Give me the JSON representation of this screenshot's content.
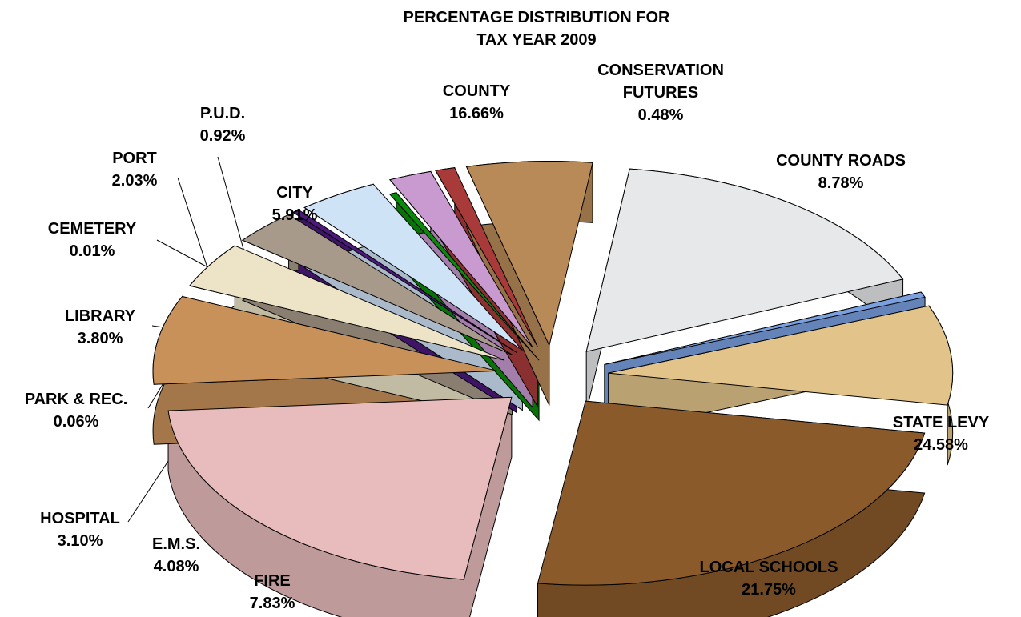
{
  "chart_data": {
    "type": "pie",
    "title_line1": "PERCENTAGE DISTRIBUTION FOR",
    "title_line2": "TAX YEAR 2009",
    "slices": [
      {
        "name": "STATE LEVY",
        "value": 24.58,
        "pct": "24.58%",
        "color": "#8a5a2b"
      },
      {
        "name": "LOCAL SCHOOLS",
        "value": 21.75,
        "pct": "21.75%",
        "color": "#e8bcbc"
      },
      {
        "name": "FIRE",
        "value": 7.83,
        "pct": "7.83%",
        "color": "#c8915a"
      },
      {
        "name": "E.M.S.",
        "value": 4.08,
        "pct": "4.08%",
        "color": "#ede4c8"
      },
      {
        "name": "HOSPITAL",
        "value": 3.1,
        "pct": "3.10%",
        "color": "#a89a8a"
      },
      {
        "name": "PARK & REC.",
        "value": 0.06,
        "pct": "0.06%",
        "color": "#4b1a7a"
      },
      {
        "name": "LIBRARY",
        "value": 3.8,
        "pct": "3.80%",
        "color": "#cfe3f7"
      },
      {
        "name": "CEMETERY",
        "value": 0.01,
        "pct": "0.01%",
        "color": "#0a8a0a"
      },
      {
        "name": "PORT",
        "value": 2.03,
        "pct": "2.03%",
        "color": "#c89ad0"
      },
      {
        "name": "P.U.D.",
        "value": 0.92,
        "pct": "0.92%",
        "color": "#a83a3a"
      },
      {
        "name": "CITY",
        "value": 5.91,
        "pct": "5.91%",
        "color": "#b88a58"
      },
      {
        "name": "COUNTY",
        "value": 16.66,
        "pct": "16.66%",
        "color": "#e6e8ea"
      },
      {
        "name": "CONSERVATION FUTURES",
        "name_line1": "CONSERVATION",
        "name_line2": "FUTURES",
        "value": 0.48,
        "pct": "0.48%",
        "color": "#7aa0e0"
      },
      {
        "name": "COUNTY ROADS",
        "value": 8.78,
        "pct": "8.78%",
        "color": "#e2c48a"
      }
    ]
  }
}
